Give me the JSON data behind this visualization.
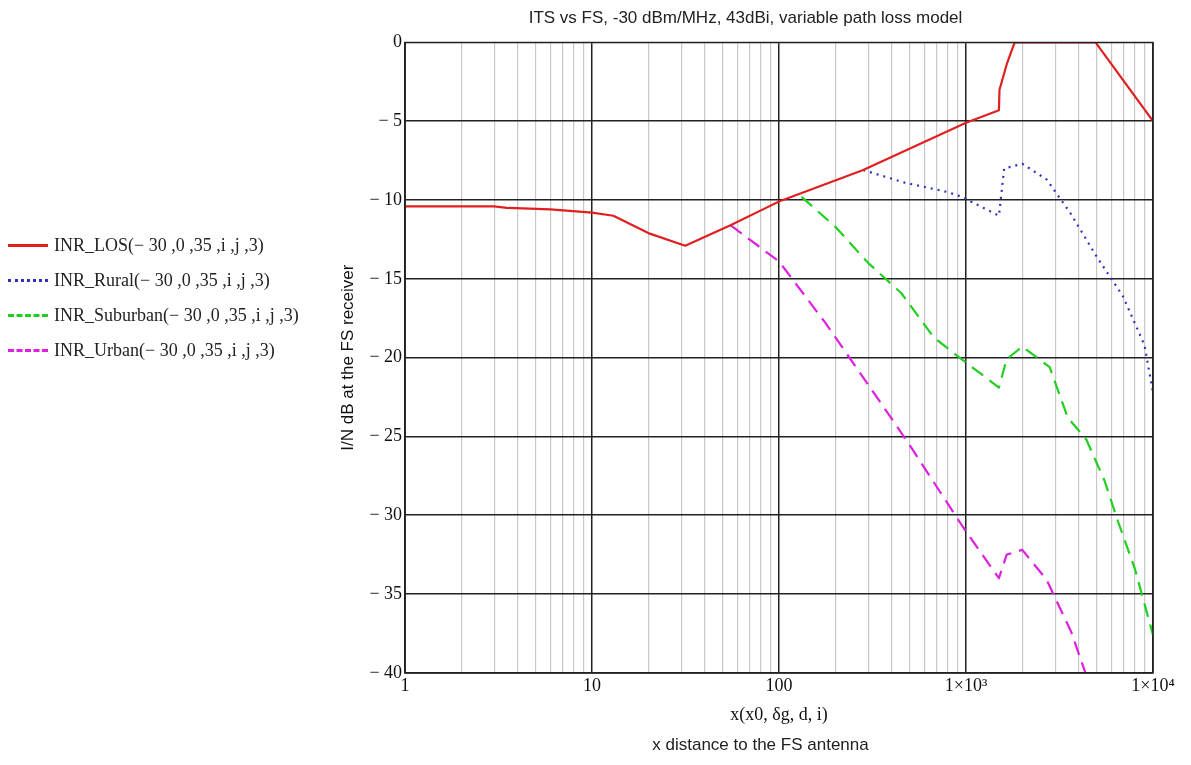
{
  "chart_data": {
    "type": "line",
    "title": "ITS vs FS, -30 dBm/MHz, 43dBi, variable path loss model",
    "xlabel": "x(x0, δg, d, i)",
    "ylabel": "I/N dB at the FS receiver",
    "annotations": [
      "x distance to the FS antenna"
    ],
    "log": "x",
    "grid": true,
    "legend": "left",
    "marker": "none",
    "xlim": [
      1,
      10000
    ],
    "ylim": [
      -40,
      0
    ],
    "xticks": [
      1,
      {
        "value": 2,
        "label": null
      },
      {
        "value": 3,
        "label": null
      },
      {
        "value": 4,
        "label": null
      },
      {
        "value": 5,
        "label": null
      },
      {
        "value": 6,
        "label": null
      },
      {
        "value": 7,
        "label": null
      },
      {
        "value": 8,
        "label": null
      },
      {
        "value": 9,
        "label": null
      },
      10,
      {
        "value": 20,
        "label": null
      },
      {
        "value": 30,
        "label": null
      },
      {
        "value": 40,
        "label": null
      },
      {
        "value": 50,
        "label": null
      },
      {
        "value": 60,
        "label": null
      },
      {
        "value": 70,
        "label": null
      },
      {
        "value": 80,
        "label": null
      },
      {
        "value": 90,
        "label": null
      },
      100,
      {
        "value": 200,
        "label": null
      },
      {
        "value": 300,
        "label": null
      },
      {
        "value": 400,
        "label": null
      },
      {
        "value": 500,
        "label": null
      },
      {
        "value": 600,
        "label": null
      },
      {
        "value": 700,
        "label": null
      },
      {
        "value": 800,
        "label": null
      },
      {
        "value": 900,
        "label": null
      },
      {
        "value": 1000,
        "label": "1×10³"
      },
      {
        "value": 2000,
        "label": null
      },
      {
        "value": 3000,
        "label": null
      },
      {
        "value": 4000,
        "label": null
      },
      {
        "value": 5000,
        "label": null
      },
      {
        "value": 6000,
        "label": null
      },
      {
        "value": 7000,
        "label": null
      },
      {
        "value": 8000,
        "label": null
      },
      {
        "value": 9000,
        "label": null
      },
      {
        "value": 10000,
        "label": "1×10⁴"
      }
    ],
    "yticks": [
      0,
      {
        "value": -5,
        "label": "− 5"
      },
      {
        "value": -10,
        "label": "− 10"
      },
      {
        "value": -15,
        "label": "− 15"
      },
      {
        "value": -20,
        "label": "− 20"
      },
      {
        "value": -25,
        "label": "− 25"
      },
      {
        "value": -30,
        "label": "− 30"
      },
      {
        "value": -35,
        "label": "− 35"
      },
      {
        "value": -40,
        "label": "− 40"
      }
    ],
    "series": [
      {
        "name": "INR_LOS(− 30 ,0 ,35 ,i ,j ,3)",
        "color": "#e02020",
        "line_style": "solid",
        "x": [
          1,
          3,
          3.5,
          6,
          10,
          13,
          20,
          31.5,
          55,
          100,
          282,
          1000,
          1500,
          1510,
          1650,
          1820,
          4930,
          10000
        ],
        "values": [
          -10.4,
          -10.4,
          -10.5,
          -10.6,
          -10.8,
          -11.0,
          -12.1,
          -12.9,
          -11.6,
          -10.1,
          -8.1,
          -5.1,
          -4.3,
          -3.0,
          -1.4,
          0,
          0,
          -5.0
        ]
      },
      {
        "name": "INR_Rural(− 30 ,0 ,35 ,i ,j ,3)",
        "color": "#3030c0",
        "line_style": "dotted",
        "x": [
          282,
          470,
          800,
          950,
          1500,
          1600,
          2000,
          2700,
          3600,
          5000,
          6900,
          9000,
          10000
        ],
        "values": [
          -8.1,
          -8.9,
          -9.5,
          -9.8,
          -11.0,
          -8.0,
          -7.7,
          -8.7,
          -10.8,
          -13.6,
          -16.1,
          -19.2,
          -22.2
        ]
      },
      {
        "name": "INR_Suburban(− 30 ,0 ,35 ,i ,j ,3)",
        "color": "#20d020",
        "line_style": "dashed",
        "x": [
          132,
          200,
          300,
          450,
          670,
          900,
          1500,
          1650,
          2000,
          2800,
          3500,
          4400,
          5500,
          6500,
          8000,
          10000
        ],
        "values": [
          -9.8,
          -11.7,
          -14.0,
          -15.9,
          -18.7,
          -19.9,
          -21.9,
          -20.1,
          -19.3,
          -20.6,
          -23.8,
          -25.2,
          -27.8,
          -30.4,
          -33.4,
          -37.6
        ]
      },
      {
        "name": "INR_Urban(− 30 ,0 ,35 ,i ,j ,3)",
        "color": "#e020e0",
        "line_style": "dashed",
        "x": [
          55,
          100,
          177,
          258,
          396,
          509,
          743,
          957,
          1500,
          1650,
          2000,
          2700,
          3650,
          4350
        ],
        "values": [
          -11.6,
          -13.9,
          -17.8,
          -20.6,
          -23.8,
          -25.7,
          -28.7,
          -30.7,
          -34.0,
          -32.5,
          -32.2,
          -34.1,
          -37.4,
          -40
        ]
      }
    ]
  }
}
